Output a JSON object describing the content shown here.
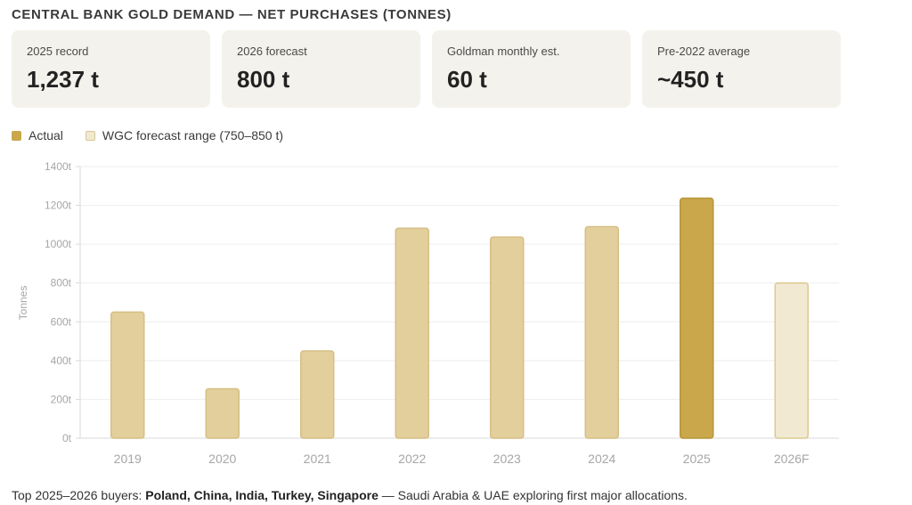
{
  "title": "CENTRAL BANK GOLD DEMAND — NET PURCHASES (TONNES)",
  "cards": [
    {
      "label": "2025 record",
      "value": "1,237 t"
    },
    {
      "label": "2026 forecast",
      "value": "800 t"
    },
    {
      "label": "Goldman monthly est.",
      "value": "60 t"
    },
    {
      "label": "Pre-2022 average",
      "value": "~450 t"
    }
  ],
  "legend": {
    "actual": "Actual",
    "forecast": "WGC forecast range (750–850 t)"
  },
  "colors": {
    "actual_highlight": "#c9a74a",
    "actual_bar": "#e3cf9c",
    "forecast_bar": "#f1e9d2",
    "grid": "#eeeeee",
    "axis": "#d9d9d9"
  },
  "chart_data": {
    "type": "bar",
    "categories": [
      "2019",
      "2020",
      "2021",
      "2022",
      "2023",
      "2024",
      "2025",
      "2026F"
    ],
    "values": [
      650,
      255,
      450,
      1082,
      1037,
      1090,
      1237,
      800
    ],
    "bar_kind": [
      "actual",
      "actual",
      "actual",
      "actual",
      "actual",
      "actual",
      "highlight",
      "forecast"
    ],
    "ylabel": "Tonnes",
    "ylim": [
      0,
      1400
    ],
    "yticks": [
      0,
      200,
      400,
      600,
      800,
      1000,
      1200,
      1400
    ],
    "ytick_labels": [
      "0t",
      "200t",
      "400t",
      "600t",
      "800t",
      "1000t",
      "1200t",
      "1400t"
    ],
    "grid": true
  },
  "footnote": {
    "prefix": "Top 2025–2026 buyers: ",
    "buyers": "Poland, China, India, Turkey, Singapore",
    "suffix": " — Saudi Arabia & UAE exploring first major allocations."
  }
}
